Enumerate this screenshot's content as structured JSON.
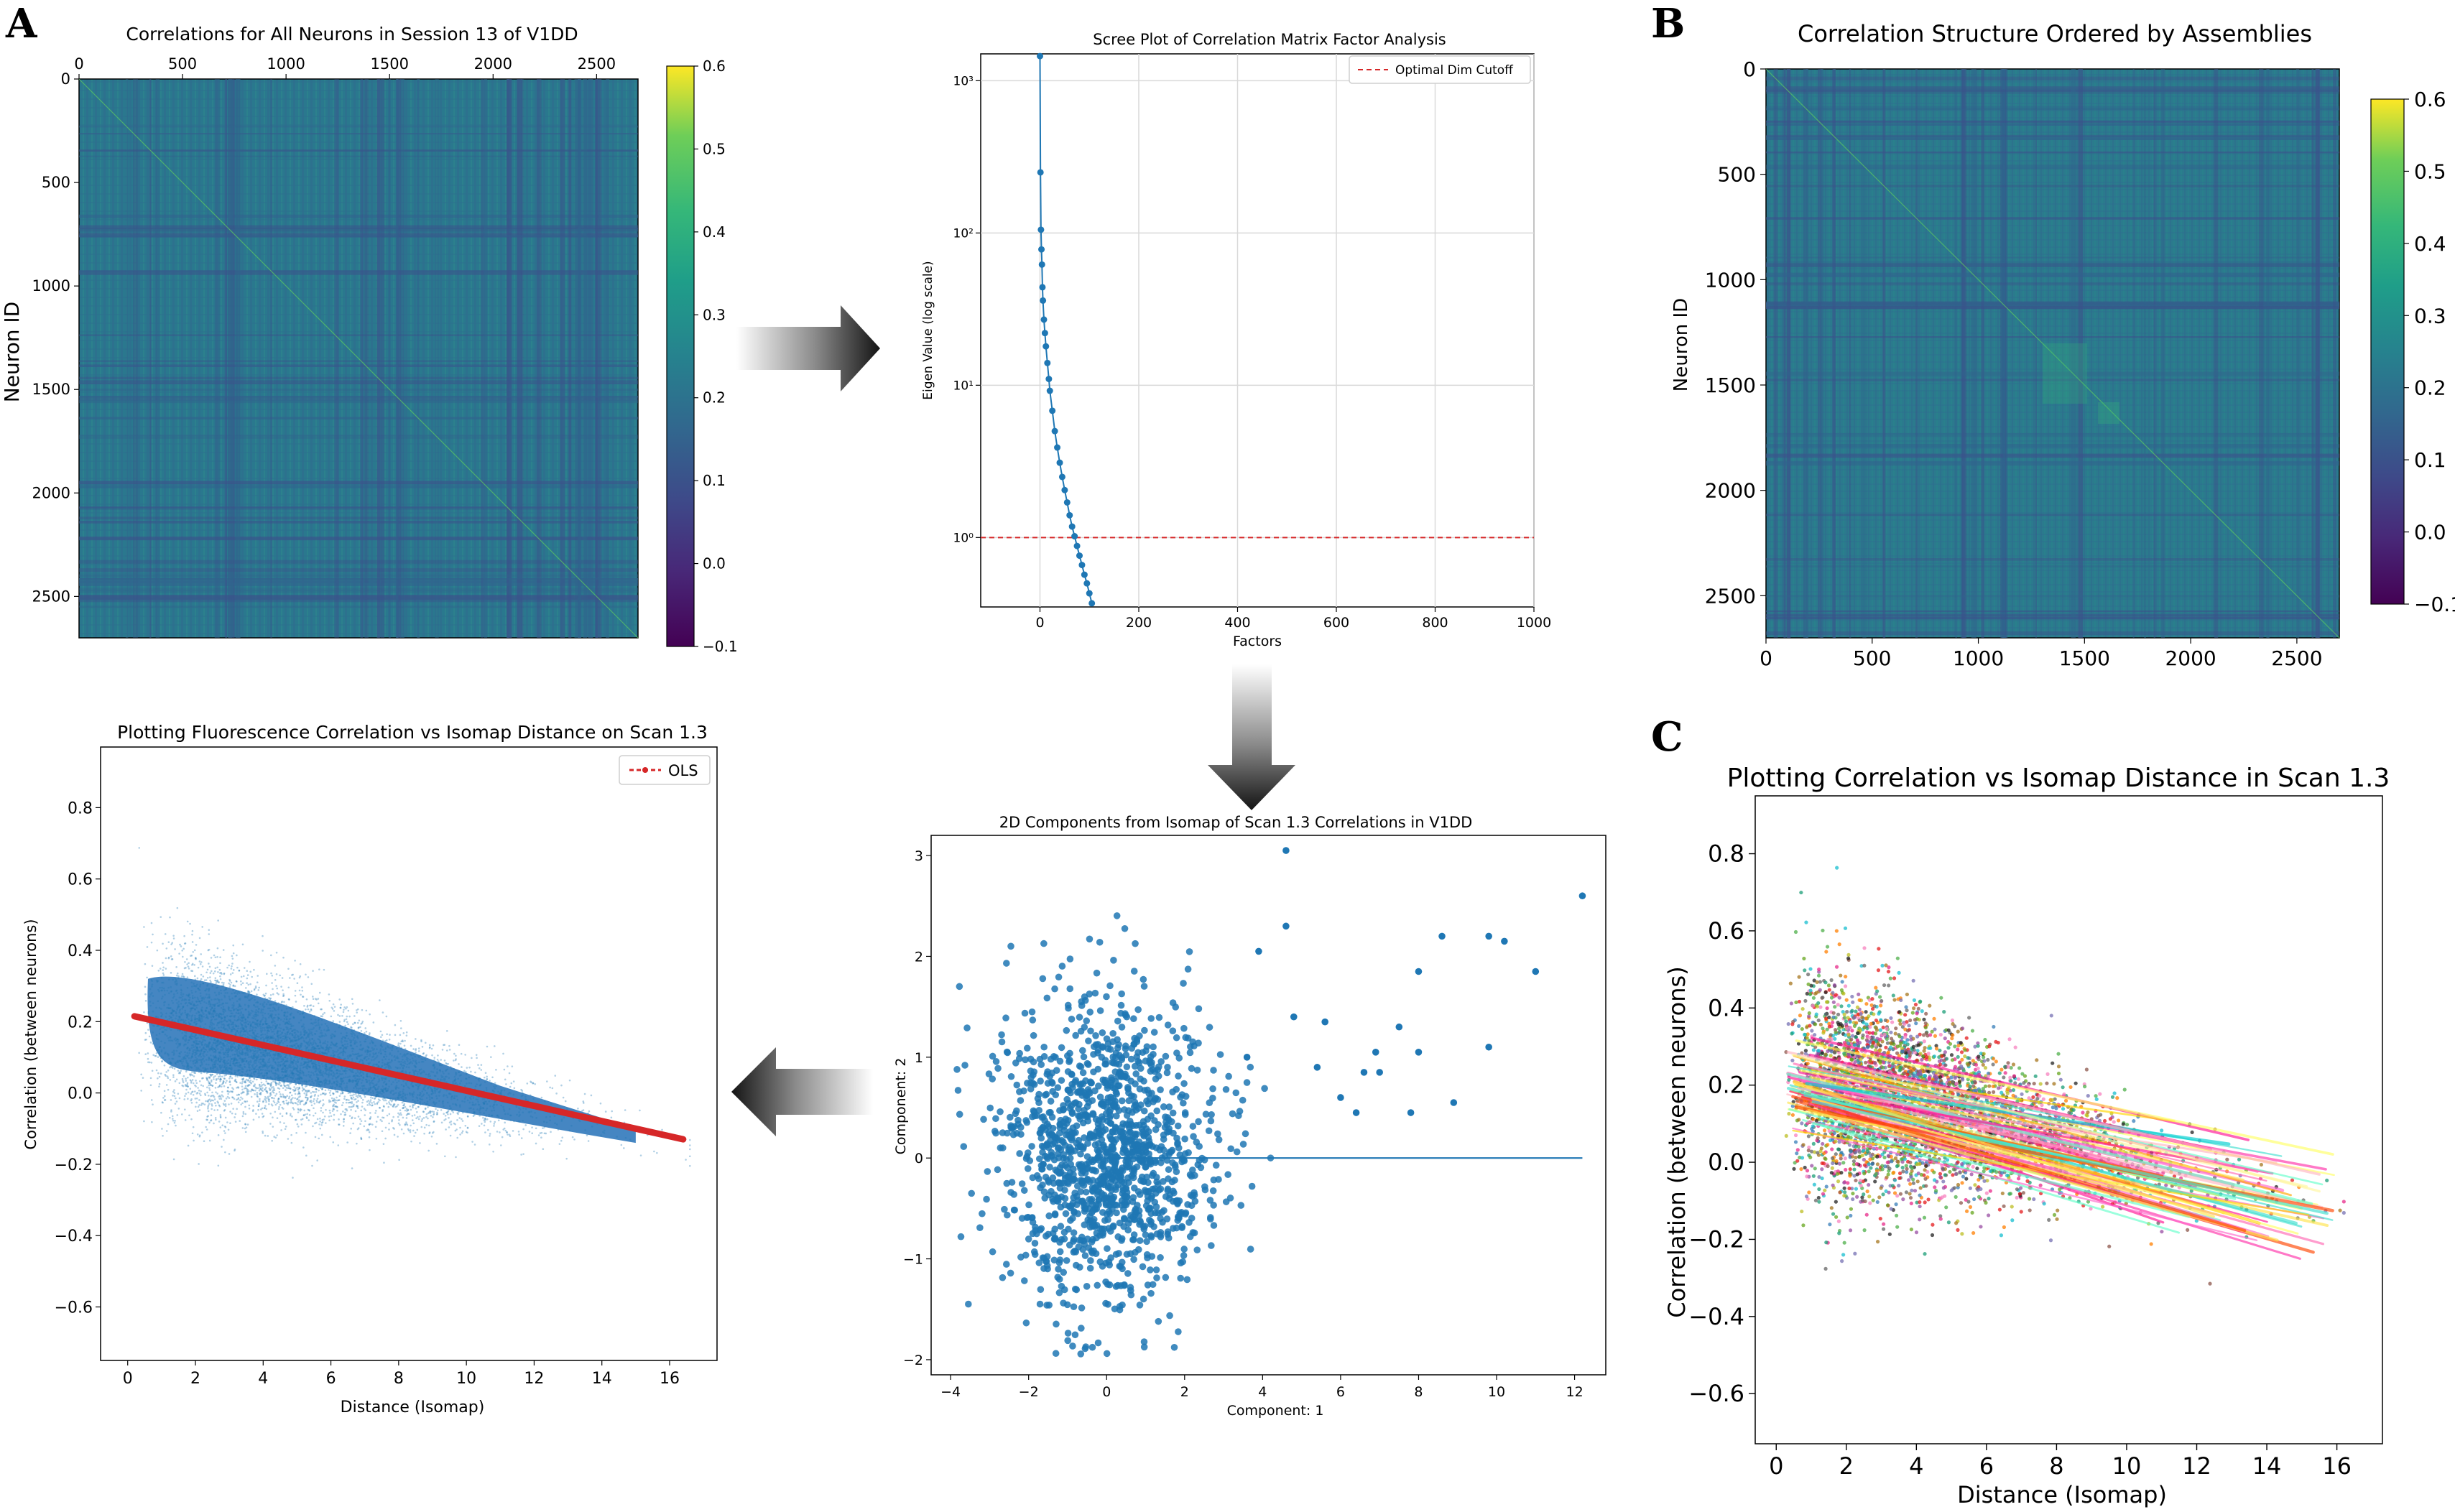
{
  "panel_letters": [
    "A",
    "B",
    "C"
  ],
  "colors": {
    "scatter_blue": "#1f77b4",
    "ols_red": "#d62728",
    "cutoff_red": "#d62728",
    "heatmap_base": "#2a788e",
    "arrow_dark": "#1a1a1a"
  },
  "colorbar_ticks": [
    "0.6",
    "0.5",
    "0.4",
    "0.3",
    "0.2",
    "0.1",
    "0.0",
    "−0.1"
  ],
  "chart_data": [
    {
      "id": "corr_all",
      "type": "heatmap",
      "title": "Correlations for All Neurons in Session 13 of V1DD",
      "ylabel": "Neuron ID",
      "xticks": [
        "0",
        "500",
        "1000",
        "1500",
        "2000",
        "2500"
      ],
      "yticks": [
        "0",
        "500",
        "1000",
        "1500",
        "2000",
        "2500"
      ],
      "n_neurons": 2700,
      "clim": [
        -0.1,
        0.6
      ],
      "colormap": "viridis",
      "colorbar_ticks": [
        "0.6",
        "0.5",
        "0.4",
        "0.3",
        "0.2",
        "0.1",
        "0.0",
        "−0.1"
      ]
    },
    {
      "id": "scree",
      "type": "scatter",
      "title": "Scree Plot of Correlation Matrix Factor Analysis",
      "xlabel": "Factors",
      "ylabel": "Eigen Value (log scale)",
      "yscale": "log",
      "xlim": [
        -120,
        1000
      ],
      "ylim": [
        0.35,
        1500
      ],
      "xticks": [
        "0",
        "200",
        "400",
        "600",
        "800",
        "1000"
      ],
      "yticks": [
        "10³",
        "10²",
        "10¹",
        "10⁰"
      ],
      "legend": "Optimal Dim Cutoff",
      "legend_position": "upper right",
      "cutoff_y": 1.0,
      "grid": true,
      "points": [
        [
          0,
          1450
        ],
        [
          1,
          250
        ],
        [
          2,
          105
        ],
        [
          3,
          78
        ],
        [
          4,
          62
        ],
        [
          5,
          44
        ],
        [
          6,
          36
        ],
        [
          8,
          27
        ],
        [
          10,
          22
        ],
        [
          12,
          18
        ],
        [
          15,
          14
        ],
        [
          18,
          11
        ],
        [
          20,
          9.2
        ],
        [
          25,
          6.8
        ],
        [
          30,
          5.0
        ],
        [
          35,
          3.9
        ],
        [
          40,
          3.1
        ],
        [
          45,
          2.5
        ],
        [
          50,
          2.05
        ],
        [
          55,
          1.7
        ],
        [
          60,
          1.4
        ],
        [
          65,
          1.18
        ],
        [
          70,
          1.02
        ],
        [
          75,
          0.88
        ],
        [
          80,
          0.76
        ],
        [
          85,
          0.66
        ],
        [
          90,
          0.57
        ],
        [
          95,
          0.5
        ],
        [
          100,
          0.43
        ],
        [
          105,
          0.37
        ]
      ]
    },
    {
      "id": "corr_assemblies",
      "type": "heatmap",
      "title": "Correlation Structure Ordered by Assemblies",
      "ylabel": "Neuron ID",
      "xticks": [
        "0",
        "500",
        "1000",
        "1500",
        "2000",
        "2500"
      ],
      "yticks": [
        "0",
        "500",
        "1000",
        "1500",
        "2000",
        "2500"
      ],
      "n_neurons": 2700,
      "clim": [
        -0.1,
        0.6
      ],
      "colormap": "viridis",
      "colorbar_ticks": [
        "0.6",
        "0.5",
        "0.4",
        "0.3",
        "0.2",
        "0.1",
        "0.0",
        "−0.1"
      ]
    },
    {
      "id": "isomap_2d",
      "type": "scatter",
      "title": "2D Components from Isomap of Scan 1.3 Correlations in V1DD",
      "xlabel": "Component: 1",
      "ylabel": "Component: 2",
      "xlim": [
        -4.5,
        12.8
      ],
      "ylim": [
        -2.15,
        3.2
      ],
      "xticks": [
        "−4",
        "−2",
        "0",
        "2",
        "4",
        "6",
        "8",
        "10",
        "12"
      ],
      "yticks": [
        "−2",
        "−1",
        "0",
        "1",
        "2",
        "3"
      ],
      "baseline": {
        "x": [
          0,
          12.2
        ],
        "y": 0
      },
      "outliers": [
        [
          4.6,
          3.05
        ],
        [
          12.2,
          2.6
        ],
        [
          9.8,
          2.2
        ],
        [
          10.2,
          2.15
        ],
        [
          11.0,
          1.85
        ],
        [
          8.6,
          2.2
        ],
        [
          8.0,
          1.85
        ],
        [
          7.5,
          1.3
        ],
        [
          6.9,
          1.05
        ],
        [
          8.0,
          1.05
        ],
        [
          9.8,
          1.1
        ],
        [
          7.0,
          0.85
        ],
        [
          6.6,
          0.85
        ],
        [
          5.6,
          1.35
        ],
        [
          6.0,
          0.6
        ],
        [
          8.9,
          0.55
        ],
        [
          7.8,
          0.45
        ],
        [
          6.4,
          0.45
        ],
        [
          5.4,
          0.9
        ],
        [
          4.8,
          1.4
        ],
        [
          4.6,
          2.3
        ],
        [
          3.9,
          2.05
        ],
        [
          3.6,
          1.0
        ]
      ],
      "n_points": 1400
    },
    {
      "id": "corr_vs_dist_ols",
      "type": "scatter",
      "title": "Plotting Fluorescence Correlation vs Isomap Distance on Scan 1.3",
      "xlabel": "Distance (Isomap)",
      "ylabel": "Correlation (between neurons)",
      "xlim": [
        -0.8,
        17.4
      ],
      "ylim": [
        -0.75,
        0.97
      ],
      "xticks": [
        "0",
        "2",
        "4",
        "6",
        "8",
        "10",
        "12",
        "14",
        "16"
      ],
      "yticks": [
        "0.8",
        "0.6",
        "0.4",
        "0.2",
        "0.0",
        "−0.2",
        "−0.4",
        "−0.6"
      ],
      "legend": "OLS",
      "legend_position": "upper right",
      "ols_line": {
        "x": [
          0.2,
          16.4
        ],
        "y": [
          0.215,
          -0.13
        ]
      },
      "n_points": 6000
    },
    {
      "id": "corr_vs_dist_assemblies",
      "type": "scatter",
      "title": "Plotting Correlation vs Isomap Distance in Scan 1.3",
      "xlabel": "Distance (Isomap)",
      "ylabel": "Correlation (between neurons)",
      "xlim": [
        -0.6,
        17.3
      ],
      "ylim": [
        -0.73,
        0.95
      ],
      "xticks": [
        "0",
        "2",
        "4",
        "6",
        "8",
        "10",
        "12",
        "14",
        "16"
      ],
      "yticks": [
        "0.8",
        "0.6",
        "0.4",
        "0.2",
        "0.0",
        "−0.2",
        "−0.4",
        "−0.6"
      ],
      "n_points": 4500
    }
  ]
}
